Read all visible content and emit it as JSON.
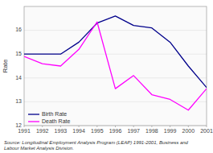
{
  "chart_data": {
    "type": "line",
    "x": [
      1991,
      1992,
      1993,
      1994,
      1995,
      1996,
      1997,
      1998,
      1999,
      2000,
      2001
    ],
    "xlim": [
      1991,
      2001
    ],
    "xticks": [
      1991,
      1992,
      1993,
      1994,
      1995,
      1996,
      1997,
      1998,
      1999,
      2000,
      2001
    ],
    "ylim": [
      12,
      17
    ],
    "yticks": [
      12,
      13,
      14,
      15,
      16
    ],
    "y_label": "Rate",
    "series": [
      {
        "name": "Birth Rate",
        "color": "#00008B",
        "values": [
          15.0,
          15.0,
          15.0,
          15.5,
          16.3,
          16.6,
          16.2,
          16.1,
          15.5,
          14.5,
          13.6
        ]
      },
      {
        "name": "Death Rate",
        "color": "#FF00FF",
        "values": [
          14.9,
          14.6,
          14.5,
          15.2,
          16.35,
          13.55,
          14.1,
          13.3,
          13.1,
          12.65,
          13.55
        ]
      }
    ],
    "grid": true,
    "legend": "lower left",
    "annotations": [
      "Source: Longitudinal Employment Analysis Program (LEAP) 1991-2001, Business and\nLabour Market Analysis Division."
    ]
  }
}
